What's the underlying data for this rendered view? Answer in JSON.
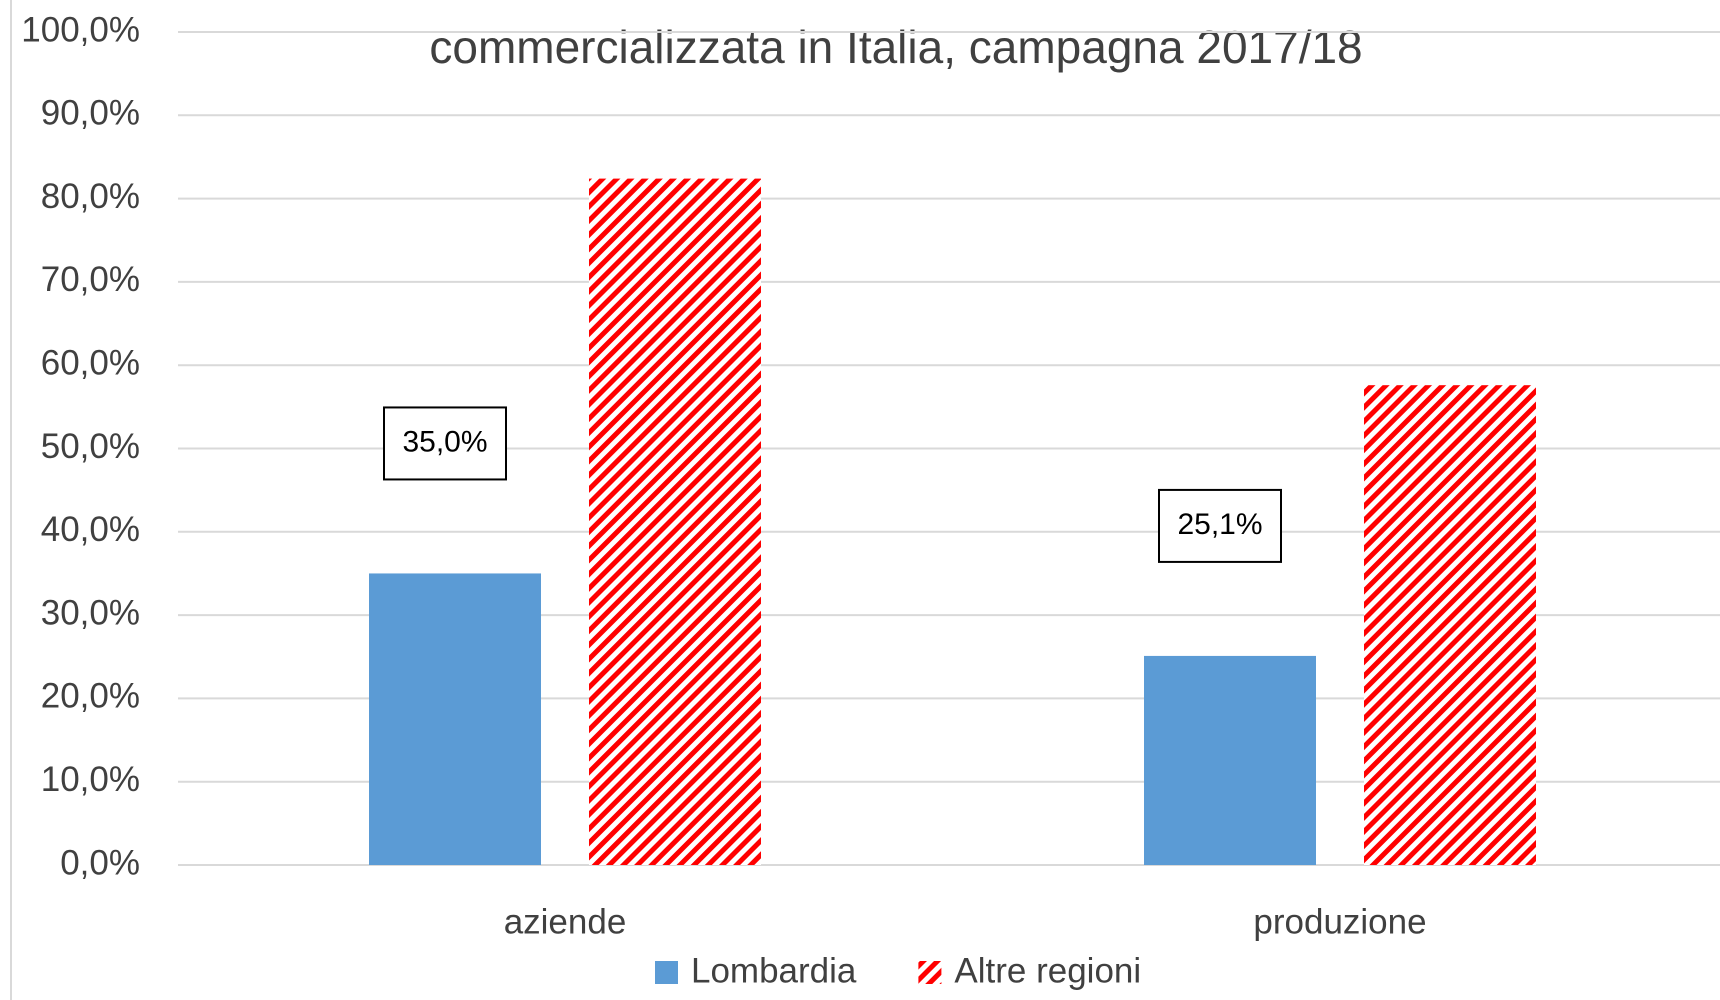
{
  "chart_data": {
    "type": "bar",
    "title": "commercializzata in Italia, campagna 2017/18",
    "categories": [
      "aziende",
      "produzione"
    ],
    "series": [
      {
        "name": "Lombardia",
        "color": "#5b9bd5",
        "values": [
          35.0,
          25.1
        ],
        "value_labels": [
          "35,0%",
          "25,1%"
        ]
      },
      {
        "name": "Altre regioni",
        "color": "#ff0000",
        "hatch": true,
        "values": [
          82.4,
          57.6
        ]
      }
    ],
    "ylim": [
      0,
      100
    ],
    "yticks": [
      {
        "value": 0,
        "label": "0,0%"
      },
      {
        "value": 10,
        "label": "10,0%"
      },
      {
        "value": 20,
        "label": "20,0%"
      },
      {
        "value": 30,
        "label": "30,0%"
      },
      {
        "value": 40,
        "label": "40,0%"
      },
      {
        "value": 50,
        "label": "50,0%"
      },
      {
        "value": 60,
        "label": "60,0%"
      },
      {
        "value": 70,
        "label": "70,0%"
      },
      {
        "value": 80,
        "label": "80,0%"
      },
      {
        "value": 90,
        "label": "90,0%"
      },
      {
        "value": 100,
        "label": "100,0%"
      }
    ],
    "grid": true
  }
}
